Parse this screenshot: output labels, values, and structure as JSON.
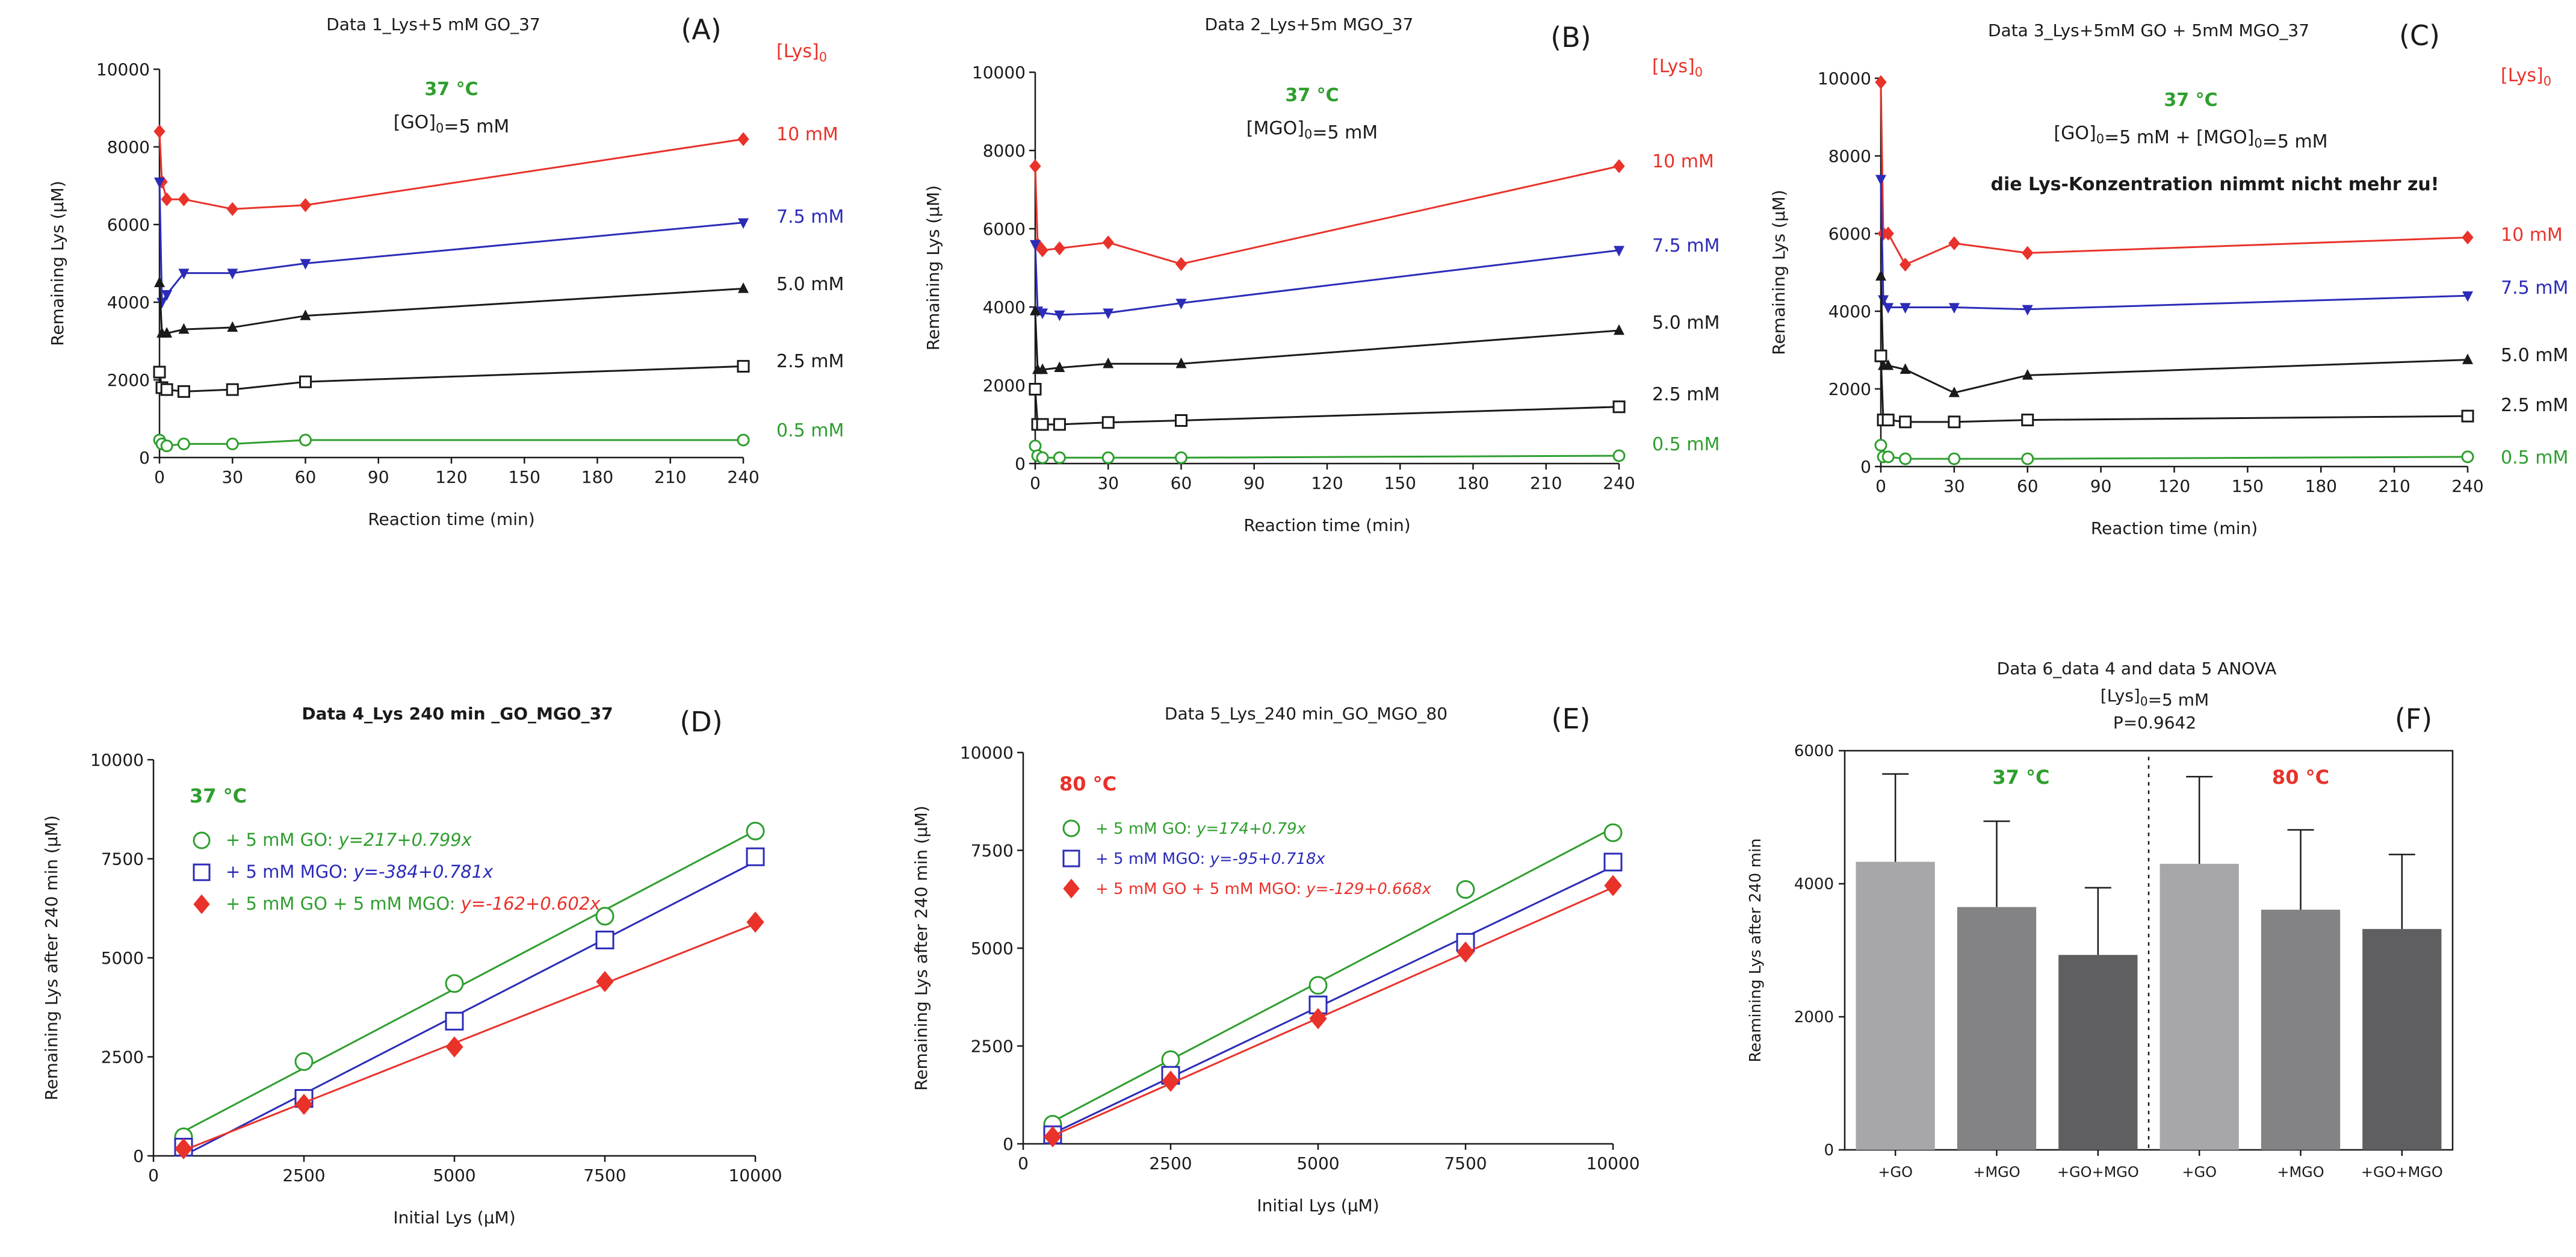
{
  "chart_data": [
    {
      "panel": "(A)",
      "type": "line",
      "title": "Data 1_Lys+5 mM GO_37",
      "xlabel": "Reaction time (min)",
      "ylabel": "Remaining Lys (μM)",
      "xlim": [
        0,
        240
      ],
      "ylim": [
        0,
        10000
      ],
      "xticks": [
        0,
        30,
        60,
        90,
        120,
        150,
        180,
        210,
        240
      ],
      "yticks": [
        0,
        2000,
        4000,
        6000,
        8000,
        10000
      ],
      "annotations": [
        "37 °C",
        "[GO]₀=5 mM"
      ],
      "legend_title": "[Lys]₀",
      "legend_position": "right",
      "series": [
        {
          "name": "10 mM",
          "color": "#e8322a",
          "marker": "diamond",
          "x": [
            0,
            1,
            3,
            10,
            30,
            60,
            240
          ],
          "values": [
            8400,
            7100,
            6650,
            6650,
            6400,
            6500,
            8200
          ]
        },
        {
          "name": "7.5 mM",
          "color": "#2b2bb8",
          "marker": "triangle-down",
          "x": [
            0,
            1,
            3,
            10,
            30,
            60,
            240
          ],
          "values": [
            7100,
            4000,
            4200,
            4750,
            4750,
            5000,
            6050
          ]
        },
        {
          "name": "5.0 mM",
          "color": "#1a1a1a",
          "marker": "triangle-up",
          "x": [
            0,
            1,
            3,
            10,
            30,
            60,
            240
          ],
          "values": [
            4500,
            3200,
            3200,
            3300,
            3350,
            3650,
            4350
          ]
        },
        {
          "name": "2.5 mM",
          "color": "#1a1a1a",
          "marker": "square-open",
          "x": [
            0,
            1,
            3,
            10,
            30,
            60,
            240
          ],
          "values": [
            2200,
            1800,
            1750,
            1700,
            1750,
            1950,
            2350
          ]
        },
        {
          "name": "0.5 mM",
          "color": "#2e9e2e",
          "marker": "circle-open",
          "x": [
            0,
            1,
            3,
            10,
            30,
            60,
            240
          ],
          "values": [
            450,
            350,
            300,
            350,
            350,
            450,
            450
          ]
        }
      ]
    },
    {
      "panel": "(B)",
      "type": "line",
      "title": "Data 2_Lys+5m MGO_37",
      "xlabel": "Reaction time (min)",
      "ylabel": "Remaining Lys (μM)",
      "xlim": [
        0,
        240
      ],
      "ylim": [
        0,
        10000
      ],
      "xticks": [
        0,
        30,
        60,
        90,
        120,
        150,
        180,
        210,
        240
      ],
      "yticks": [
        0,
        2000,
        4000,
        6000,
        8000,
        10000
      ],
      "annotations": [
        "37 °C",
        "[MGO]₀=5 mM"
      ],
      "legend_title": "[Lys]₀",
      "legend_position": "right",
      "series": [
        {
          "name": "10 mM",
          "color": "#e8322a",
          "marker": "diamond",
          "x": [
            0,
            1,
            3,
            10,
            30,
            60,
            240
          ],
          "values": [
            7600,
            5600,
            5450,
            5500,
            5650,
            5100,
            7600
          ]
        },
        {
          "name": "7.5 mM",
          "color": "#2b2bb8",
          "marker": "triangle-down",
          "x": [
            0,
            1,
            3,
            10,
            30,
            60,
            240
          ],
          "values": [
            5600,
            3900,
            3850,
            3800,
            3850,
            4100,
            5450
          ]
        },
        {
          "name": "5.0 mM",
          "color": "#1a1a1a",
          "marker": "triangle-up",
          "x": [
            0,
            1,
            3,
            10,
            30,
            60,
            240
          ],
          "values": [
            3900,
            2400,
            2400,
            2450,
            2550,
            2550,
            3400
          ]
        },
        {
          "name": "2.5 mM",
          "color": "#1a1a1a",
          "marker": "square-open",
          "x": [
            0,
            1,
            3,
            10,
            30,
            60,
            240
          ],
          "values": [
            1900,
            1000,
            1000,
            1000,
            1050,
            1100,
            1450
          ]
        },
        {
          "name": "0.5 mM",
          "color": "#2e9e2e",
          "marker": "circle-open",
          "x": [
            0,
            1,
            3,
            10,
            30,
            60,
            240
          ],
          "values": [
            450,
            200,
            150,
            150,
            150,
            150,
            200
          ]
        }
      ]
    },
    {
      "panel": "(C)",
      "type": "line",
      "title": "Data 3_Lys+5mM GO + 5mM MGO_37",
      "xlabel": "Reaction time (min)",
      "ylabel": "Remaining Lys (μM)",
      "xlim": [
        0,
        240
      ],
      "ylim": [
        0,
        10000
      ],
      "xticks": [
        0,
        30,
        60,
        90,
        120,
        150,
        180,
        210,
        240
      ],
      "yticks": [
        0,
        2000,
        4000,
        6000,
        8000,
        10000
      ],
      "annotations": [
        "37 °C",
        "[GO]₀=5 mM + [MGO]₀=5 mM",
        "die Lys-Konzentration nimmt nicht mehr zu!"
      ],
      "legend_title": "[Lys]₀",
      "legend_position": "right",
      "series": [
        {
          "name": "10 mM",
          "color": "#e8322a",
          "marker": "diamond",
          "x": [
            0,
            1,
            3,
            10,
            30,
            60,
            240
          ],
          "values": [
            9900,
            6000,
            6000,
            5200,
            5750,
            5500,
            5900
          ]
        },
        {
          "name": "7.5 mM",
          "color": "#2b2bb8",
          "marker": "triangle-down",
          "x": [
            0,
            1,
            3,
            10,
            30,
            60,
            240
          ],
          "values": [
            7400,
            4300,
            4100,
            4100,
            4100,
            4050,
            4400
          ]
        },
        {
          "name": "5.0 mM",
          "color": "#1a1a1a",
          "marker": "triangle-up",
          "x": [
            0,
            1,
            3,
            10,
            30,
            60,
            240
          ],
          "values": [
            4900,
            2600,
            2600,
            2500,
            1900,
            2350,
            2750
          ]
        },
        {
          "name": "2.5 mM",
          "color": "#1a1a1a",
          "marker": "square-open",
          "x": [
            0,
            1,
            3,
            10,
            30,
            60,
            240
          ],
          "values": [
            2850,
            1200,
            1200,
            1150,
            1150,
            1200,
            1300
          ]
        },
        {
          "name": "0.5 mM",
          "color": "#2e9e2e",
          "marker": "circle-open",
          "x": [
            0,
            1,
            3,
            10,
            30,
            60,
            240
          ],
          "values": [
            550,
            250,
            250,
            200,
            200,
            200,
            250
          ]
        }
      ]
    },
    {
      "panel": "(D)",
      "type": "scatter",
      "title": "Data 4_Lys 240 min _GO_MGO_37",
      "xlabel": "Initial Lys (μM)",
      "ylabel": "Remaining Lys after 240 min (μM)",
      "xlim": [
        0,
        10000
      ],
      "ylim": [
        0,
        10000
      ],
      "xticks": [
        0,
        2500,
        5000,
        7500,
        10000
      ],
      "yticks": [
        0,
        2500,
        5000,
        7500,
        10000
      ],
      "annotations": [
        "37 °C"
      ],
      "legend_position": "top-left",
      "series": [
        {
          "name": "+ 5 mM GO",
          "equation": "y=217+0.799x",
          "intercept": 217,
          "slope": 0.799,
          "color": "#2e9e2e",
          "label_color": "#2e9e2e",
          "marker": "circle-open",
          "x": [
            500,
            2500,
            5000,
            7500,
            10000
          ],
          "values": [
            480,
            2380,
            4350,
            6050,
            8200
          ]
        },
        {
          "name": "+ 5 mM MGO",
          "equation": "y=-384+0.781x",
          "intercept": -384,
          "slope": 0.781,
          "color": "#2b2bb8",
          "label_color": "#2b2bb8",
          "marker": "square-open",
          "x": [
            500,
            2500,
            5000,
            7500,
            10000
          ],
          "values": [
            220,
            1450,
            3400,
            5450,
            7550
          ]
        },
        {
          "name": "+ 5 mM GO + 5 mM MGO",
          "equation": "y=-162+0.602x",
          "intercept": -162,
          "slope": 0.602,
          "color": "#e8322a",
          "label_color": "#2e9e2e",
          "marker": "diamond",
          "x": [
            500,
            2500,
            5000,
            7500,
            10000
          ],
          "values": [
            180,
            1300,
            2750,
            4400,
            5900
          ]
        }
      ]
    },
    {
      "panel": "(E)",
      "type": "scatter",
      "title": "Data 5_Lys_240 min_GO_MGO_80",
      "xlabel": "Initial Lys (μM)",
      "ylabel": "Remaining Lys after 240 min (μM)",
      "xlim": [
        0,
        10000
      ],
      "ylim": [
        0,
        10000
      ],
      "xticks": [
        0,
        2500,
        5000,
        7500,
        10000
      ],
      "yticks": [
        0,
        2500,
        5000,
        7500,
        10000
      ],
      "annotations": [
        "80 °C"
      ],
      "legend_position": "top-left",
      "series": [
        {
          "name": "+ 5 mM GO",
          "equation": "y=174+0.79x",
          "intercept": 174,
          "slope": 0.79,
          "color": "#2e9e2e",
          "label_color": "#2e9e2e",
          "marker": "circle-open",
          "x": [
            500,
            2500,
            5000,
            7500,
            10000
          ],
          "values": [
            500,
            2150,
            4050,
            6500,
            7950
          ]
        },
        {
          "name": "+ 5 mM MGO",
          "equation": "y=-95+0.718x",
          "intercept": -95,
          "slope": 0.718,
          "color": "#2b2bb8",
          "label_color": "#2b2bb8",
          "marker": "square-open",
          "x": [
            500,
            2500,
            5000,
            7500,
            10000
          ],
          "values": [
            230,
            1750,
            3550,
            5150,
            7200
          ]
        },
        {
          "name": "+ 5 mM GO + 5 mM MGO",
          "equation": "y=-129+0.668x",
          "intercept": -129,
          "slope": 0.668,
          "color": "#e8322a",
          "label_color": "#e8322a",
          "marker": "diamond",
          "x": [
            500,
            2500,
            5000,
            7500,
            10000
          ],
          "values": [
            180,
            1600,
            3200,
            4900,
            6600
          ]
        }
      ]
    },
    {
      "panel": "(F)",
      "type": "bar",
      "title": "Data 6_data 4 and data 5 ANOVA",
      "subtitle": "[Lys]₀=5 mM",
      "stat": "P=0.9642",
      "xlabel": "",
      "ylabel": "Reamining Lys after 240 min",
      "ylim": [
        0,
        6000
      ],
      "yticks": [
        0,
        2000,
        4000,
        6000
      ],
      "categories": [
        "+GO",
        "+MGO",
        "+GO+MGO",
        "+GO",
        "+MGO",
        "+GO+MGO"
      ],
      "values": [
        4330,
        3650,
        2930,
        4300,
        3610,
        3320
      ],
      "errors": [
        1320,
        1290,
        1010,
        1310,
        1200,
        1120
      ],
      "bar_colors": [
        "#a7a7aa",
        "#838386",
        "#5f5f62",
        "#a7a7aa",
        "#838386",
        "#5f5f62"
      ],
      "groups": [
        {
          "label": "37 °C",
          "color": "#2e9e2e"
        },
        {
          "label": "80 °C",
          "color": "#e8322a"
        }
      ]
    }
  ]
}
